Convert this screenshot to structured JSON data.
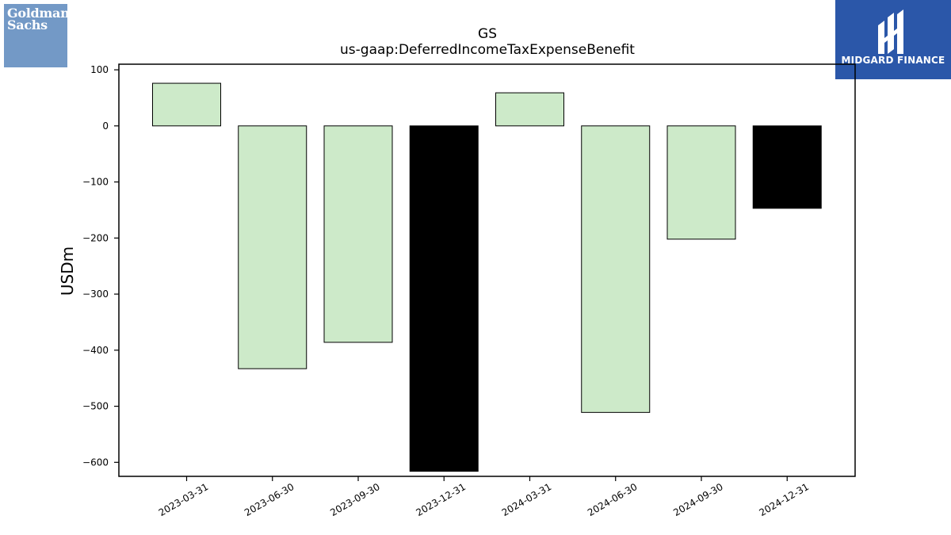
{
  "logos": {
    "left": {
      "line1": "Goldman",
      "line2": "Sachs"
    },
    "right": {
      "name": "MIDGARD FINANCE"
    }
  },
  "chart_data": {
    "type": "bar",
    "title": "GS",
    "subtitle": "us-gaap:DeferredIncomeTaxExpenseBenefit",
    "xlabel": "",
    "ylabel": "USDm",
    "categories": [
      "2023-03-31",
      "2023-06-30",
      "2023-09-30",
      "2023-12-31",
      "2024-03-31",
      "2024-06-30",
      "2024-09-30",
      "2024-12-31"
    ],
    "values": [
      76,
      -433,
      -386,
      -616,
      59,
      -511,
      -202,
      -147
    ],
    "bar_colors": [
      "#cdeac9",
      "#cdeac9",
      "#cdeac9",
      "#000000",
      "#cdeac9",
      "#cdeac9",
      "#cdeac9",
      "#000000"
    ],
    "ylim": [
      -625,
      110
    ],
    "yticks": [
      100,
      0,
      -100,
      -200,
      -300,
      -400,
      -500,
      -600
    ],
    "ytick_labels": [
      "100",
      "0",
      "−100",
      "−200",
      "−300",
      "−400",
      "−500",
      "−600"
    ],
    "grid": false,
    "legend": "none"
  }
}
